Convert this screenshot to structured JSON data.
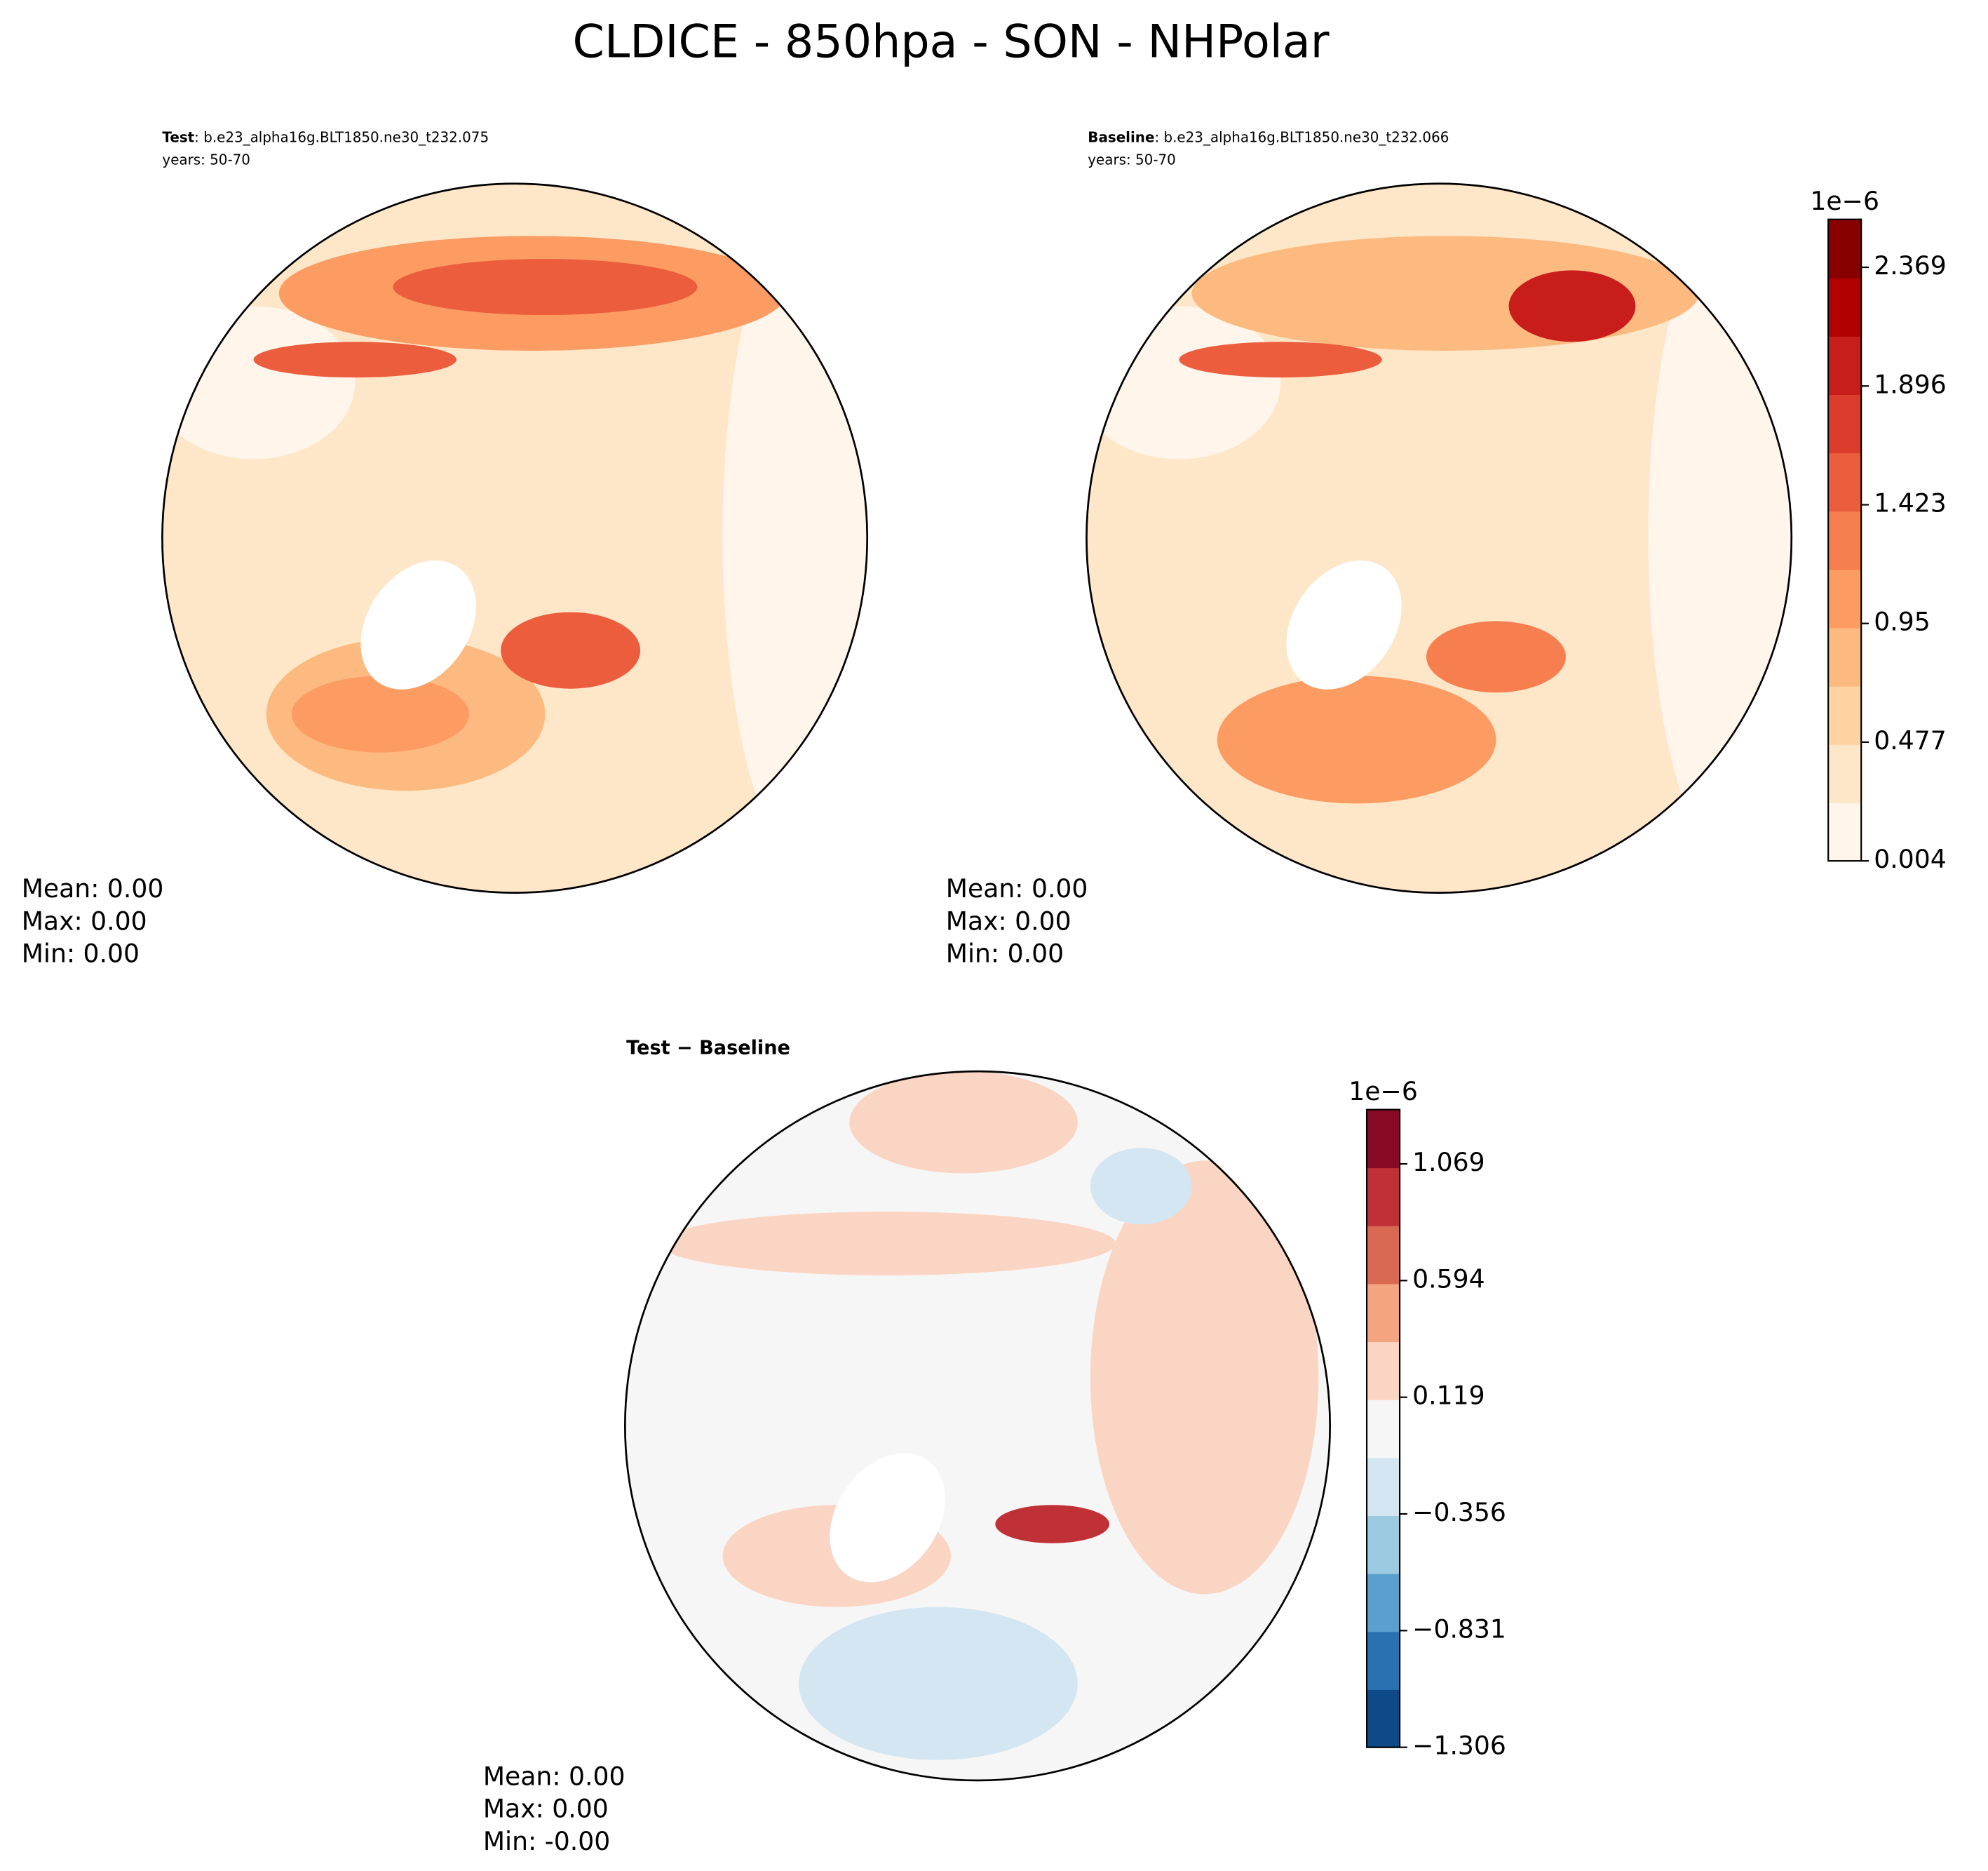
{
  "chart_data": {
    "type": "polar-map-figure",
    "title": "CLDICE - 850hpa - SON - NHPolar",
    "panels": [
      {
        "header_bold": "Test",
        "header_rest": ": b.e23_alpha16g.BLT1850.ne30_t232.075",
        "years": "years: 50-70",
        "stats": [
          "Mean:  0.00",
          "Max:  0.00",
          "Min:  0.00"
        ]
      },
      {
        "header_bold": "Baseline",
        "header_rest": ": b.e23_alpha16g.BLT1850.ne30_t232.066",
        "years": "years: 50-70",
        "stats": [
          "Mean:  0.00",
          "Max:  0.00",
          "Min:  0.00"
        ]
      },
      {
        "header_bold": "Test − Baseline",
        "stats": [
          "Mean:  0.00",
          "Max:  0.00",
          "Min: -0.00"
        ]
      }
    ],
    "colorbars": [
      {
        "offset_label": "1e−6",
        "clim": [
          0.004,
          2.56
        ],
        "ticks": [
          0.004,
          0.477,
          0.95,
          {
            "value": 1.423,
            "label": "1.423"
          },
          1.896,
          2.369
        ],
        "colors": [
          "#fff5eb",
          "#fee6c8",
          "#fdd3a2",
          "#fdba80",
          "#fc9c63",
          "#f77e4f",
          "#ec5d3e",
          "#dc3c2b",
          "#c91d1c",
          "#b10101",
          "#880000"
        ]
      },
      {
        "offset_label": "1e−6",
        "clim": [
          -1.306,
          1.29
        ],
        "ticks": [
          {
            "value": -1.306,
            "label": "−1.306"
          },
          {
            "value": -0.831,
            "label": "−0.831"
          },
          {
            "value": -0.356,
            "label": "−0.356"
          },
          0.119,
          0.594,
          1.069
        ],
        "colors": [
          "#0d4a87",
          "#2a71b2",
          "#5aa0cc",
          "#9ccae1",
          "#d4e6f1",
          "#f6f6f6",
          "#fbd5c3",
          "#f3a582",
          "#da6954",
          "#c03137",
          "#870a24"
        ]
      }
    ]
  }
}
